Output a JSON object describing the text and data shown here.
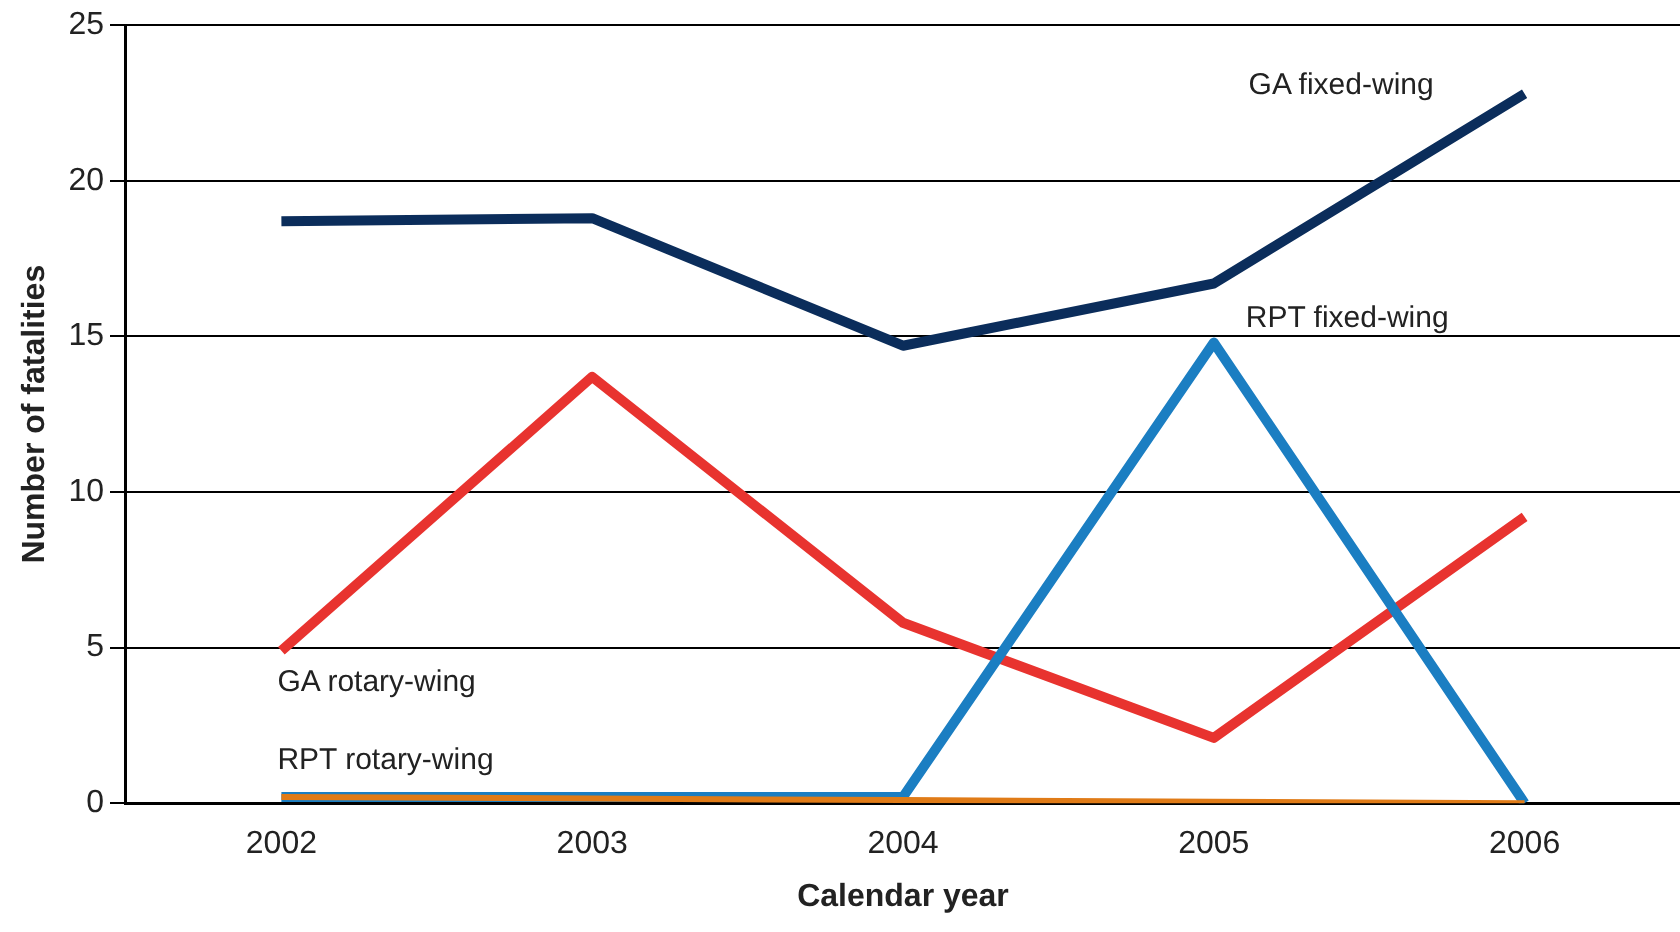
{
  "chart_data": {
    "type": "line",
    "xlabel": "Calendar year",
    "ylabel": "Number of fatalities",
    "categories": [
      "2002",
      "2003",
      "2004",
      "2005",
      "2006"
    ],
    "series": [
      {
        "name": "GA fixed-wing",
        "color": "#0b2d5b",
        "values": [
          18.7,
          18.8,
          14.7,
          16.7,
          22.8
        ]
      },
      {
        "name": "GA rotary-wing",
        "color": "#e8332f",
        "values": [
          4.9,
          13.7,
          5.8,
          2.1,
          9.2
        ]
      },
      {
        "name": "RPT fixed-wing",
        "color": "#1b7ec2",
        "values": [
          0.2,
          0.2,
          0.2,
          14.8,
          0
        ]
      },
      {
        "name": "RPT rotary-wing",
        "color": "#e07b17",
        "values": [
          0.2,
          0.15,
          0.1,
          0.05,
          0
        ]
      }
    ],
    "ylim": [
      0,
      25
    ],
    "yticks": [
      0,
      5,
      10,
      15,
      20,
      25
    ],
    "grid": "y",
    "legend": false,
    "marker": "none",
    "line_style": "solid"
  }
}
